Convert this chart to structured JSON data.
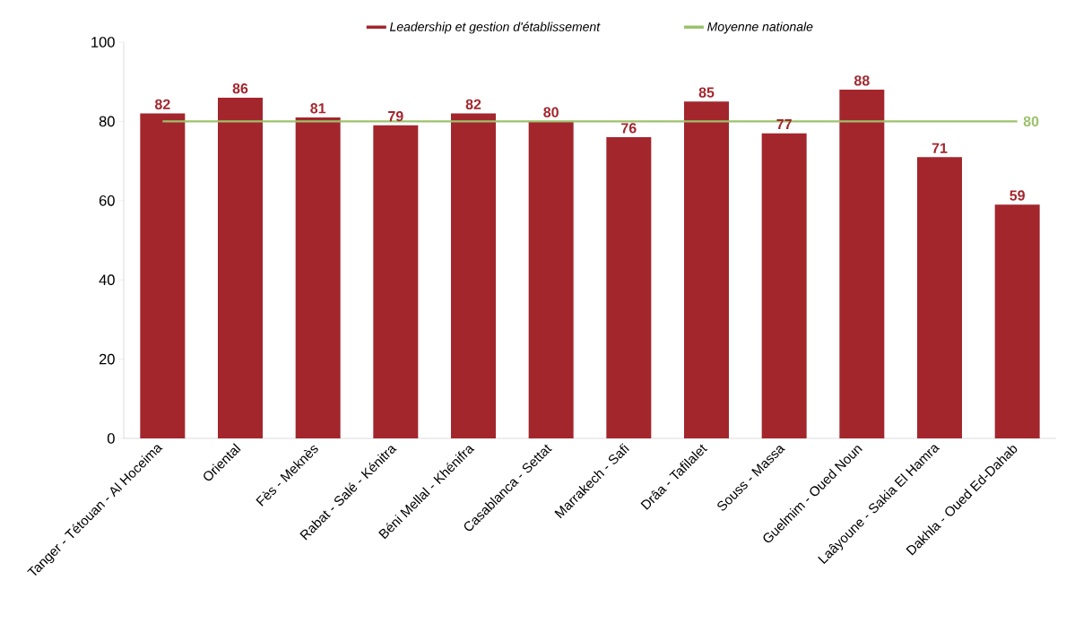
{
  "chart_data": {
    "type": "bar",
    "categories": [
      "Tanger - Tétouan - Al Hoceima",
      "Oriental",
      "Fès - Meknès",
      "Rabat - Salé - Kénitra",
      "Béni Mellal - Khénifra",
      "Casablanca - Settat",
      "Marrakech - Safi",
      "Drâa - Tafilalet",
      "Souss - Massa",
      "Guelmim - Oued Noun",
      "Laâyoune - Sakia El Hamra",
      "Dakhla - Oued Ed-Dahab"
    ],
    "series": [
      {
        "name": "Leadership et gestion d'établissement",
        "color": "#a3262d",
        "values": [
          82,
          86,
          81,
          79,
          82,
          80,
          76,
          85,
          77,
          88,
          71,
          59
        ],
        "value_labels": [
          "82",
          "86",
          "81",
          "79",
          "82",
          "80",
          "76",
          "85",
          "77",
          "88",
          "71",
          "59"
        ]
      },
      {
        "name": "Moyenne nationale",
        "type": "line",
        "color": "#9bc26b",
        "values": [
          80,
          80,
          80,
          80,
          80,
          80,
          80,
          80,
          80,
          80,
          80,
          80
        ],
        "value_labels": [
          null,
          null,
          null,
          null,
          null,
          null,
          null,
          null,
          null,
          null,
          null,
          "80"
        ]
      }
    ],
    "ylim": [
      0,
      100
    ],
    "yticks": [
      0,
      20,
      40,
      60,
      80,
      100
    ],
    "grid": false,
    "legend": "top"
  }
}
